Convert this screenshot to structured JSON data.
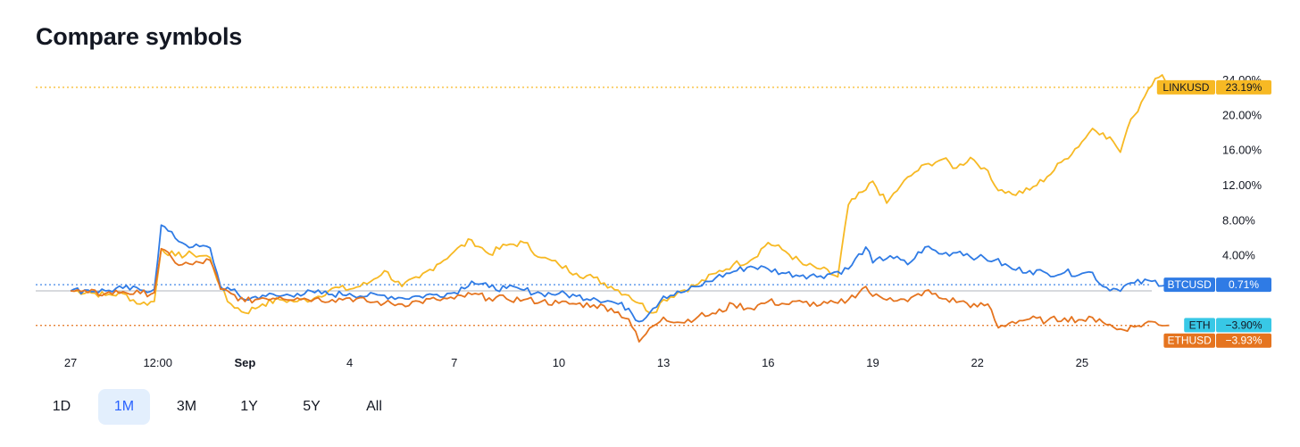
{
  "title": "Compare symbols",
  "ranges": [
    "1D",
    "1M",
    "3M",
    "1Y",
    "5Y",
    "All"
  ],
  "active_range": "1M",
  "colors": {
    "LINKUSD": "#f7b924",
    "BTCUSD": "#2f7be5",
    "ETHUSD": "#e5741f",
    "ETH": "#38c8e6",
    "baseline": "#b2b5be"
  },
  "chart_data": {
    "type": "line",
    "title": "",
    "xlabel": "",
    "ylabel": "",
    "y_unit": "%",
    "ylim": [
      -6.5,
      24.5
    ],
    "y_ticks": [
      "24.00%",
      "20.00%",
      "16.00%",
      "12.00%",
      "8.00%",
      "4.00%"
    ],
    "y_tick_values": [
      24,
      20,
      16,
      12,
      8,
      4
    ],
    "x_tick_labels": [
      "27",
      "12:00",
      "Sep",
      "4",
      "7",
      "10",
      "13",
      "16",
      "19",
      "22",
      "25"
    ],
    "x_tick_values": [
      0,
      2.5,
      5,
      8,
      11,
      14,
      17,
      20,
      23,
      26,
      29
    ],
    "xlim": [
      -1,
      31
    ],
    "series": [
      {
        "name": "LINKUSD",
        "last_label": "23.19%",
        "last": 23.19,
        "points": [
          [
            0,
            0
          ],
          [
            0.5,
            -0.1
          ],
          [
            1,
            -0.5
          ],
          [
            1.5,
            -0.3
          ],
          [
            2,
            -1.5
          ],
          [
            2.4,
            -1.2
          ],
          [
            2.6,
            4.8
          ],
          [
            3,
            4.0
          ],
          [
            3.5,
            4.2
          ],
          [
            4,
            3.8
          ],
          [
            4.3,
            0.4
          ],
          [
            4.5,
            -1.2
          ],
          [
            5,
            -2.5
          ],
          [
            5.5,
            -1.5
          ],
          [
            6,
            -1.0
          ],
          [
            6.5,
            -1.2
          ],
          [
            7,
            -0.8
          ],
          [
            7.5,
            0.3
          ],
          [
            8,
            0.2
          ],
          [
            8.5,
            0.8
          ],
          [
            9,
            2.3
          ],
          [
            9.5,
            0.5
          ],
          [
            10,
            1.5
          ],
          [
            10.5,
            3.0
          ],
          [
            11,
            4.5
          ],
          [
            11.5,
            5.8
          ],
          [
            12,
            4.2
          ],
          [
            12.5,
            5.2
          ],
          [
            13,
            5.5
          ],
          [
            13.5,
            3.8
          ],
          [
            14,
            3.0
          ],
          [
            14.5,
            2.0
          ],
          [
            15,
            1.5
          ],
          [
            15.5,
            0.5
          ],
          [
            16,
            -0.5
          ],
          [
            16.3,
            -1.4
          ],
          [
            16.7,
            -2.5
          ],
          [
            17,
            -1.0
          ],
          [
            17.5,
            0
          ],
          [
            18,
            0.8
          ],
          [
            18.5,
            2.0
          ],
          [
            19,
            3.0
          ],
          [
            19.5,
            3.5
          ],
          [
            20,
            5.5
          ],
          [
            20.5,
            4.5
          ],
          [
            21,
            3.0
          ],
          [
            21.5,
            2.5
          ],
          [
            22,
            1.6
          ],
          [
            22.3,
            9.8
          ],
          [
            22.8,
            11.5
          ],
          [
            23,
            12.5
          ],
          [
            23.4,
            10.0
          ],
          [
            23.8,
            12.0
          ],
          [
            24.2,
            13.5
          ],
          [
            24.6,
            14.5
          ],
          [
            25,
            15.0
          ],
          [
            25.4,
            14.0
          ],
          [
            25.8,
            15.2
          ],
          [
            26.2,
            14.0
          ],
          [
            26.5,
            12.0
          ],
          [
            27,
            11.0
          ],
          [
            27.5,
            11.5
          ],
          [
            28,
            13.0
          ],
          [
            28.5,
            15.0
          ],
          [
            29,
            17.0
          ],
          [
            29.3,
            18.5
          ],
          [
            29.6,
            18.0
          ],
          [
            29.9,
            17.0
          ],
          [
            30.1,
            15.8
          ],
          [
            30.3,
            18.5
          ],
          [
            30.5,
            20.0
          ],
          [
            30.7,
            21.5
          ],
          [
            30.9,
            23.0
          ],
          [
            31.1,
            24.2
          ],
          [
            31.3,
            24.6
          ],
          [
            31.5,
            23.8
          ],
          [
            31.7,
            23.19
          ]
        ]
      },
      {
        "name": "BTCUSD",
        "last_label": "0.71%",
        "last": 0.71,
        "points": [
          [
            0,
            0
          ],
          [
            0.5,
            0.1
          ],
          [
            1,
            0
          ],
          [
            1.5,
            0.3
          ],
          [
            2,
            0.1
          ],
          [
            2.4,
            0.2
          ],
          [
            2.6,
            7.5
          ],
          [
            3,
            6.0
          ],
          [
            3.5,
            5.0
          ],
          [
            4,
            4.9
          ],
          [
            4.3,
            0.5
          ],
          [
            4.6,
            0.1
          ],
          [
            5,
            -1.0
          ],
          [
            5.5,
            -0.5
          ],
          [
            6,
            -0.6
          ],
          [
            6.5,
            -0.3
          ],
          [
            7,
            -0.2
          ],
          [
            7.5,
            -0.4
          ],
          [
            8,
            -0.3
          ],
          [
            8.5,
            -0.6
          ],
          [
            9,
            -0.5
          ],
          [
            9.5,
            -0.8
          ],
          [
            10,
            -0.6
          ],
          [
            10.5,
            -0.4
          ],
          [
            11,
            -0.2
          ],
          [
            11.5,
            1.1
          ],
          [
            12,
            0.4
          ],
          [
            12.5,
            0.3
          ],
          [
            13,
            0.1
          ],
          [
            13.5,
            -0.3
          ],
          [
            14,
            -0.3
          ],
          [
            14.5,
            -0.6
          ],
          [
            15,
            -0.8
          ],
          [
            15.5,
            -1.2
          ],
          [
            16,
            -2.0
          ],
          [
            16.3,
            -3.5
          ],
          [
            16.7,
            -2.0
          ],
          [
            17,
            -0.6
          ],
          [
            17.5,
            -0.2
          ],
          [
            18,
            0.5
          ],
          [
            18.5,
            1.5
          ],
          [
            19,
            2.2
          ],
          [
            19.5,
            2.8
          ],
          [
            20,
            2.5
          ],
          [
            20.5,
            2.0
          ],
          [
            21,
            1.8
          ],
          [
            21.5,
            1.7
          ],
          [
            22,
            2.2
          ],
          [
            22.3,
            2.5
          ],
          [
            22.8,
            5.0
          ],
          [
            23,
            3.2
          ],
          [
            23.5,
            4.0
          ],
          [
            24,
            3.0
          ],
          [
            24.5,
            5.0
          ],
          [
            25,
            4.2
          ],
          [
            25.5,
            4.5
          ],
          [
            26,
            3.8
          ],
          [
            26.5,
            3.5
          ],
          [
            27,
            2.5
          ],
          [
            27.5,
            2.3
          ],
          [
            28,
            2.0
          ],
          [
            28.5,
            2.1
          ],
          [
            29,
            2.0
          ],
          [
            29.3,
            2.1
          ],
          [
            29.6,
            0.5
          ],
          [
            30,
            0.2
          ],
          [
            30.5,
            0.9
          ],
          [
            31,
            1.1
          ],
          [
            31.5,
            0.71
          ]
        ]
      },
      {
        "name": "ETHUSD",
        "last_label": "-3.93%",
        "last": -3.93,
        "points": [
          [
            0,
            0
          ],
          [
            0.5,
            -0.2
          ],
          [
            1,
            -0.3
          ],
          [
            1.5,
            -0.1
          ],
          [
            2,
            -0.3
          ],
          [
            2.4,
            -0.2
          ],
          [
            2.6,
            4.8
          ],
          [
            3,
            3.2
          ],
          [
            3.5,
            3.0
          ],
          [
            4,
            3.5
          ],
          [
            4.3,
            0.2
          ],
          [
            4.6,
            -0.3
          ],
          [
            5,
            -1.2
          ],
          [
            5.5,
            -0.8
          ],
          [
            6,
            -0.7
          ],
          [
            6.5,
            -0.8
          ],
          [
            7,
            -0.9
          ],
          [
            7.5,
            -1.0
          ],
          [
            8,
            -0.8
          ],
          [
            8.5,
            -1.2
          ],
          [
            9,
            -1.4
          ],
          [
            9.5,
            -1.5
          ],
          [
            10,
            -1.2
          ],
          [
            10.5,
            -1.0
          ],
          [
            11,
            -0.9
          ],
          [
            11.5,
            -0.4
          ],
          [
            12,
            -0.8
          ],
          [
            12.5,
            -0.9
          ],
          [
            13,
            -1.0
          ],
          [
            13.5,
            -1.2
          ],
          [
            14,
            -1.4
          ],
          [
            14.5,
            -1.5
          ],
          [
            15,
            -1.6
          ],
          [
            15.5,
            -2.0
          ],
          [
            16,
            -3.2
          ],
          [
            16.3,
            -5.8
          ],
          [
            16.7,
            -4.0
          ],
          [
            17,
            -3.0
          ],
          [
            17.5,
            -3.6
          ],
          [
            18,
            -2.9
          ],
          [
            18.5,
            -2.6
          ],
          [
            19,
            -1.5
          ],
          [
            19.5,
            -2.0
          ],
          [
            20,
            -1.2
          ],
          [
            20.5,
            -1.5
          ],
          [
            21,
            -1.3
          ],
          [
            21.5,
            -1.6
          ],
          [
            22,
            -1.4
          ],
          [
            22.3,
            -1.0
          ],
          [
            22.8,
            0.5
          ],
          [
            23,
            -0.6
          ],
          [
            23.5,
            -0.8
          ],
          [
            24,
            -1.2
          ],
          [
            24.5,
            0.0
          ],
          [
            25,
            -0.9
          ],
          [
            25.5,
            -1.2
          ],
          [
            26,
            -1.8
          ],
          [
            26.3,
            -1.5
          ],
          [
            26.6,
            -4.2
          ],
          [
            27,
            -3.5
          ],
          [
            27.5,
            -3.2
          ],
          [
            28,
            -3.4
          ],
          [
            28.5,
            -3.1
          ],
          [
            29,
            -3.3
          ],
          [
            29.5,
            -3.2
          ],
          [
            30,
            -4.4
          ],
          [
            30.5,
            -4.1
          ],
          [
            31,
            -3.5
          ],
          [
            31.5,
            -3.93
          ]
        ]
      }
    ],
    "tags": [
      {
        "name": "LINKUSD",
        "value_label": "23.19%",
        "value": 23.19,
        "color": "#f7b924",
        "text_color": "#131722"
      },
      {
        "name": "BTCUSD",
        "value_label": "0.71%",
        "value": 0.71,
        "color": "#2f7be5",
        "text_color": "#ffffff"
      },
      {
        "name": "ETH",
        "value_label": "−3.90%",
        "value": -3.9,
        "color": "#38c8e6",
        "text_color": "#131722"
      },
      {
        "name": "ETHUSD",
        "value_label": "−3.93%",
        "value": -3.93,
        "color": "#e5741f",
        "text_color": "#ffffff"
      }
    ]
  }
}
